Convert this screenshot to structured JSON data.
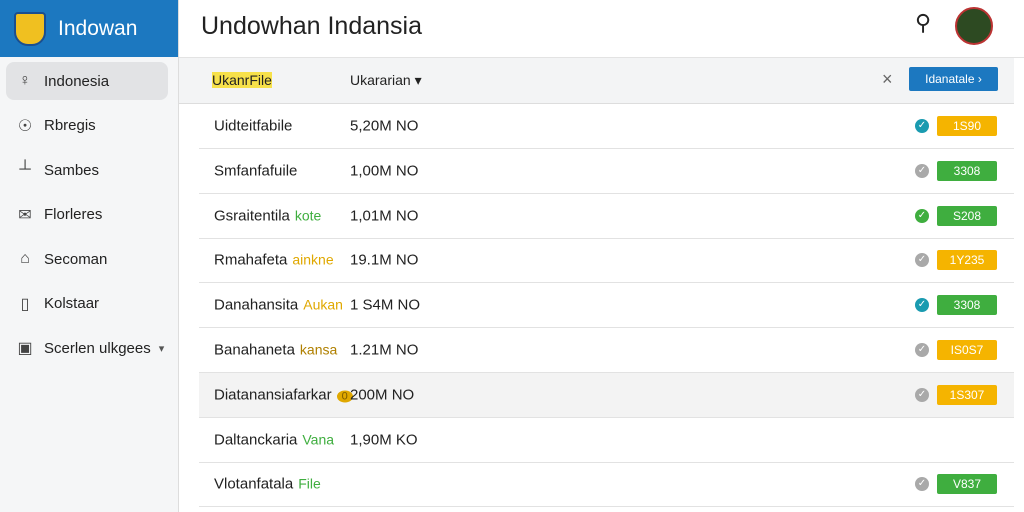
{
  "app": {
    "logo": "Indowan",
    "title": "Undowhan Indansia"
  },
  "sidebar": {
    "items": [
      "Indonesia",
      "Rbregis",
      "Sambes",
      "Florleres",
      "Secoman",
      "Kolstaar",
      "Scerlen ulkgees"
    ],
    "selected": 0,
    "icons": [
      "♀",
      "☉",
      "┴",
      "✉",
      "⌂",
      "▯",
      "▣"
    ]
  },
  "table": {
    "header": {
      "file": "UkanrFile",
      "sort": "Ukararian",
      "button": "Idanatale"
    },
    "rows": [
      {
        "name": "Uidteitfabile",
        "tag": null,
        "tag_color": null,
        "size": "5,20M NO",
        "status": "#1a9bb0",
        "badge": "1S90",
        "badge_color": "#f5b400"
      },
      {
        "name": "Smfanfafuile",
        "tag": null,
        "tag_color": null,
        "size": "1,00M NO",
        "status": "#a9a9a9",
        "badge": "3308",
        "badge_color": "#3fae3f"
      },
      {
        "name": "Gsraitentila",
        "tag": "kote",
        "tag_color": "#3fae3f",
        "size": "1,01M NO",
        "status": "#3fae3f",
        "badge": "S208",
        "badge_color": "#3fae3f"
      },
      {
        "name": "Rmahafeta",
        "tag": "ainkne",
        "tag_color": "#e0a800",
        "size": "19.1M NO",
        "status": "#a9a9a9",
        "badge": "1Y235",
        "badge_color": "#f5b400"
      },
      {
        "name": "Danahansita",
        "tag": "Aukan",
        "tag_color": "#e0a800",
        "size": "1 S4M NO",
        "status": "#1a9bb0",
        "badge": "3308",
        "badge_color": "#3fae3f"
      },
      {
        "name": "Banahaneta",
        "tag": "kansa",
        "tag_color": "#b08000",
        "size": "1.21M NO",
        "status": "#a9a9a9",
        "badge": "IS0S7",
        "badge_color": "#f5b400"
      },
      {
        "name": "Diatanansiafarkar",
        "tag": "0",
        "tag_color": "#e0a800",
        "size": "200M NO",
        "status": "#a9a9a9",
        "badge": "1S307",
        "badge_color": "#f5b400"
      },
      {
        "name": "Daltanckaria",
        "tag": "Vana",
        "tag_color": "#3fae3f",
        "size": "1,90M KO",
        "status": null,
        "badge": null,
        "badge_color": null
      },
      {
        "name": "Vlotanfatala",
        "tag": "File",
        "tag_color": "#3fae3f",
        "size": null,
        "status": "#a9a9a9",
        "badge": "V837",
        "badge_color": "#3fae3f"
      }
    ]
  }
}
